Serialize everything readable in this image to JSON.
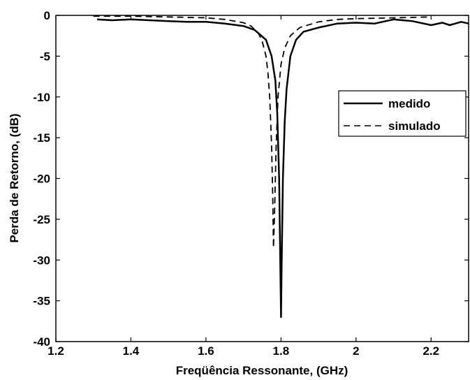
{
  "chart_data": {
    "type": "line",
    "title": "",
    "xlabel": "Freqüência Ressonante, (GHz)",
    "ylabel": "Perda de Retorno, (dB)",
    "xlim": [
      1.2,
      2.3
    ],
    "ylim": [
      -40,
      0
    ],
    "xticks": [
      1.2,
      1.4,
      1.6,
      1.8,
      2,
      2.2
    ],
    "xtick_labels": [
      "1.2",
      "1.4",
      "1.6",
      "1.8",
      "2",
      "2.2"
    ],
    "yticks": [
      0,
      -5,
      -10,
      -15,
      -20,
      -25,
      -30,
      -35,
      -40
    ],
    "ytick_labels": [
      "0",
      "-5",
      "-10",
      "-15",
      "-20",
      "-25",
      "-30",
      "-35",
      "-40"
    ],
    "grid": false,
    "legend_position": "right",
    "series": [
      {
        "name": "medido",
        "style": "solid",
        "color": "#000000",
        "points": [
          [
            1.31,
            -0.5
          ],
          [
            1.35,
            -0.6
          ],
          [
            1.4,
            -0.5
          ],
          [
            1.45,
            -0.6
          ],
          [
            1.5,
            -0.7
          ],
          [
            1.55,
            -0.8
          ],
          [
            1.6,
            -0.8
          ],
          [
            1.65,
            -1.0
          ],
          [
            1.7,
            -1.3
          ],
          [
            1.73,
            -1.8
          ],
          [
            1.76,
            -3.0
          ],
          [
            1.775,
            -5.0
          ],
          [
            1.785,
            -8.0
          ],
          [
            1.79,
            -12.0
          ],
          [
            1.795,
            -20.0
          ],
          [
            1.798,
            -30.0
          ],
          [
            1.8,
            -37.0
          ],
          [
            1.802,
            -30.0
          ],
          [
            1.805,
            -20.0
          ],
          [
            1.81,
            -13.0
          ],
          [
            1.815,
            -9.0
          ],
          [
            1.825,
            -5.0
          ],
          [
            1.84,
            -3.0
          ],
          [
            1.86,
            -2.0
          ],
          [
            1.9,
            -1.5
          ],
          [
            1.95,
            -1.0
          ],
          [
            2.0,
            -0.9
          ],
          [
            2.05,
            -1.0
          ],
          [
            2.1,
            -0.5
          ],
          [
            2.15,
            -0.7
          ],
          [
            2.2,
            -1.2
          ],
          [
            2.23,
            -0.9
          ],
          [
            2.25,
            -1.2
          ],
          [
            2.28,
            -0.8
          ],
          [
            2.3,
            -1.0
          ]
        ]
      },
      {
        "name": "simulado",
        "style": "dashed",
        "color": "#000000",
        "points": [
          [
            1.3,
            -0.1
          ],
          [
            1.4,
            -0.1
          ],
          [
            1.5,
            -0.2
          ],
          [
            1.6,
            -0.3
          ],
          [
            1.65,
            -0.5
          ],
          [
            1.7,
            -0.9
          ],
          [
            1.72,
            -1.3
          ],
          [
            1.74,
            -2.2
          ],
          [
            1.75,
            -3.2
          ],
          [
            1.76,
            -5.0
          ],
          [
            1.765,
            -7.0
          ],
          [
            1.77,
            -10.0
          ],
          [
            1.775,
            -16.0
          ],
          [
            1.778,
            -22.0
          ],
          [
            1.78,
            -28.5
          ],
          [
            1.783,
            -24.0
          ],
          [
            1.787,
            -16.0
          ],
          [
            1.792,
            -10.0
          ],
          [
            1.8,
            -6.0
          ],
          [
            1.81,
            -4.0
          ],
          [
            1.825,
            -2.5
          ],
          [
            1.85,
            -1.5
          ],
          [
            1.9,
            -0.8
          ],
          [
            1.95,
            -0.5
          ],
          [
            2.0,
            -0.4
          ],
          [
            2.1,
            -0.3
          ],
          [
            2.2,
            -0.2
          ]
        ]
      }
    ]
  }
}
